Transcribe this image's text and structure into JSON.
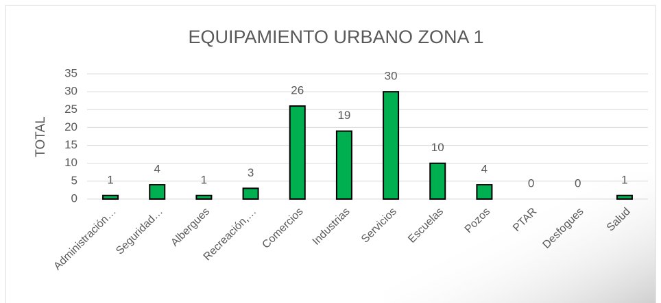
{
  "chart_data": {
    "type": "bar",
    "title": "EQUIPAMIENTO URBANO ZONA 1",
    "y_label": "TOTAL",
    "categories": [
      "Administración…",
      "Seguridad…",
      "Albergues",
      "Recreación,…",
      "Comercios",
      "Industrias",
      "Servicios",
      "Escuelas",
      "Pozos",
      "PTAR",
      "Desfogues",
      "Salud"
    ],
    "values": [
      1,
      4,
      1,
      3,
      26,
      19,
      30,
      10,
      4,
      0,
      0,
      1
    ],
    "color": "#00b050",
    "ylim": [
      0,
      35
    ],
    "yticks": [
      0,
      5,
      10,
      15,
      20,
      25,
      30,
      35
    ],
    "grid": true
  }
}
